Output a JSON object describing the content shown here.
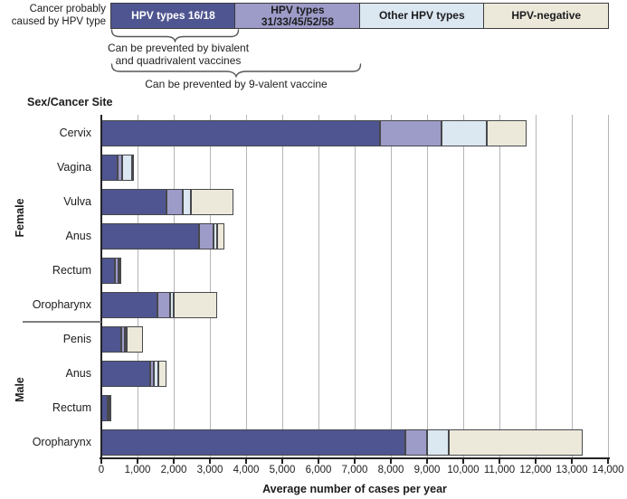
{
  "header": {
    "legend_label": "Cancer probably\ncaused by HPV type",
    "legend_items": [
      {
        "label": "HPV types 16/18",
        "color": "#4f5590",
        "text_color": "#ffffff"
      },
      {
        "label": "HPV types\n31/33/45/52/58",
        "color": "#9d9bc8",
        "text_color": "#1c1c1e"
      },
      {
        "label": "Other HPV types",
        "color": "#dbe7f1",
        "text_color": "#1c1c1e"
      },
      {
        "label": "HPV-negative",
        "color": "#ece9da",
        "text_color": "#1c1c1e"
      }
    ],
    "brace1_caption": "Can be prevented by bivalent\nand quadrivalent vaccines",
    "brace2_caption": "Can be prevented by 9-valent vaccine"
  },
  "chart_data": {
    "type": "bar",
    "orientation": "horizontal-stacked",
    "title": "Sex/Cancer Site",
    "xlabel": "Average number of cases per year",
    "xlim": [
      0,
      14000
    ],
    "xticks": [
      0,
      1000,
      2000,
      3000,
      4000,
      5000,
      6000,
      7000,
      8000,
      9000,
      10000,
      11000,
      12000,
      13000,
      14000
    ],
    "grid": true,
    "legend_position": "top",
    "series": [
      {
        "name": "HPV types 16/18",
        "color": "#4f5590"
      },
      {
        "name": "HPV types 31/33/45/52/58",
        "color": "#9d9bc8"
      },
      {
        "name": "Other HPV types",
        "color": "#dbe7f1"
      },
      {
        "name": "HPV-negative",
        "color": "#ece9da"
      }
    ],
    "groups": [
      {
        "name": "Female",
        "row_start": 0,
        "row_end": 5
      },
      {
        "name": "Male",
        "row_start": 6,
        "row_end": 9
      }
    ],
    "rows": [
      {
        "group": "Female",
        "site": "Cervix",
        "values": [
          7700,
          1700,
          1250,
          1100
        ],
        "total": 11750
      },
      {
        "group": "Female",
        "site": "Vagina",
        "values": [
          450,
          130,
          280,
          50
        ],
        "total": 910
      },
      {
        "group": "Female",
        "site": "Vulva",
        "values": [
          1800,
          450,
          225,
          1175
        ],
        "total": 3650
      },
      {
        "group": "Female",
        "site": "Anus",
        "values": [
          2700,
          400,
          100,
          200
        ],
        "total": 3400
      },
      {
        "group": "Female",
        "site": "Rectum",
        "values": [
          375,
          100,
          25,
          25
        ],
        "total": 525
      },
      {
        "group": "Female",
        "site": "Oropharynx",
        "values": [
          1550,
          350,
          100,
          1200
        ],
        "total": 3200
      },
      {
        "group": "Male",
        "site": "Penis",
        "values": [
          560,
          90,
          50,
          450
        ],
        "total": 1150
      },
      {
        "group": "Male",
        "site": "Anus",
        "values": [
          1350,
          100,
          125,
          225
        ],
        "total": 1800
      },
      {
        "group": "Male",
        "site": "Rectum",
        "values": [
          180,
          30,
          20,
          20
        ],
        "total": 250
      },
      {
        "group": "Male",
        "site": "Oropharynx",
        "values": [
          8400,
          600,
          600,
          3700
        ],
        "total": 13300
      }
    ]
  }
}
